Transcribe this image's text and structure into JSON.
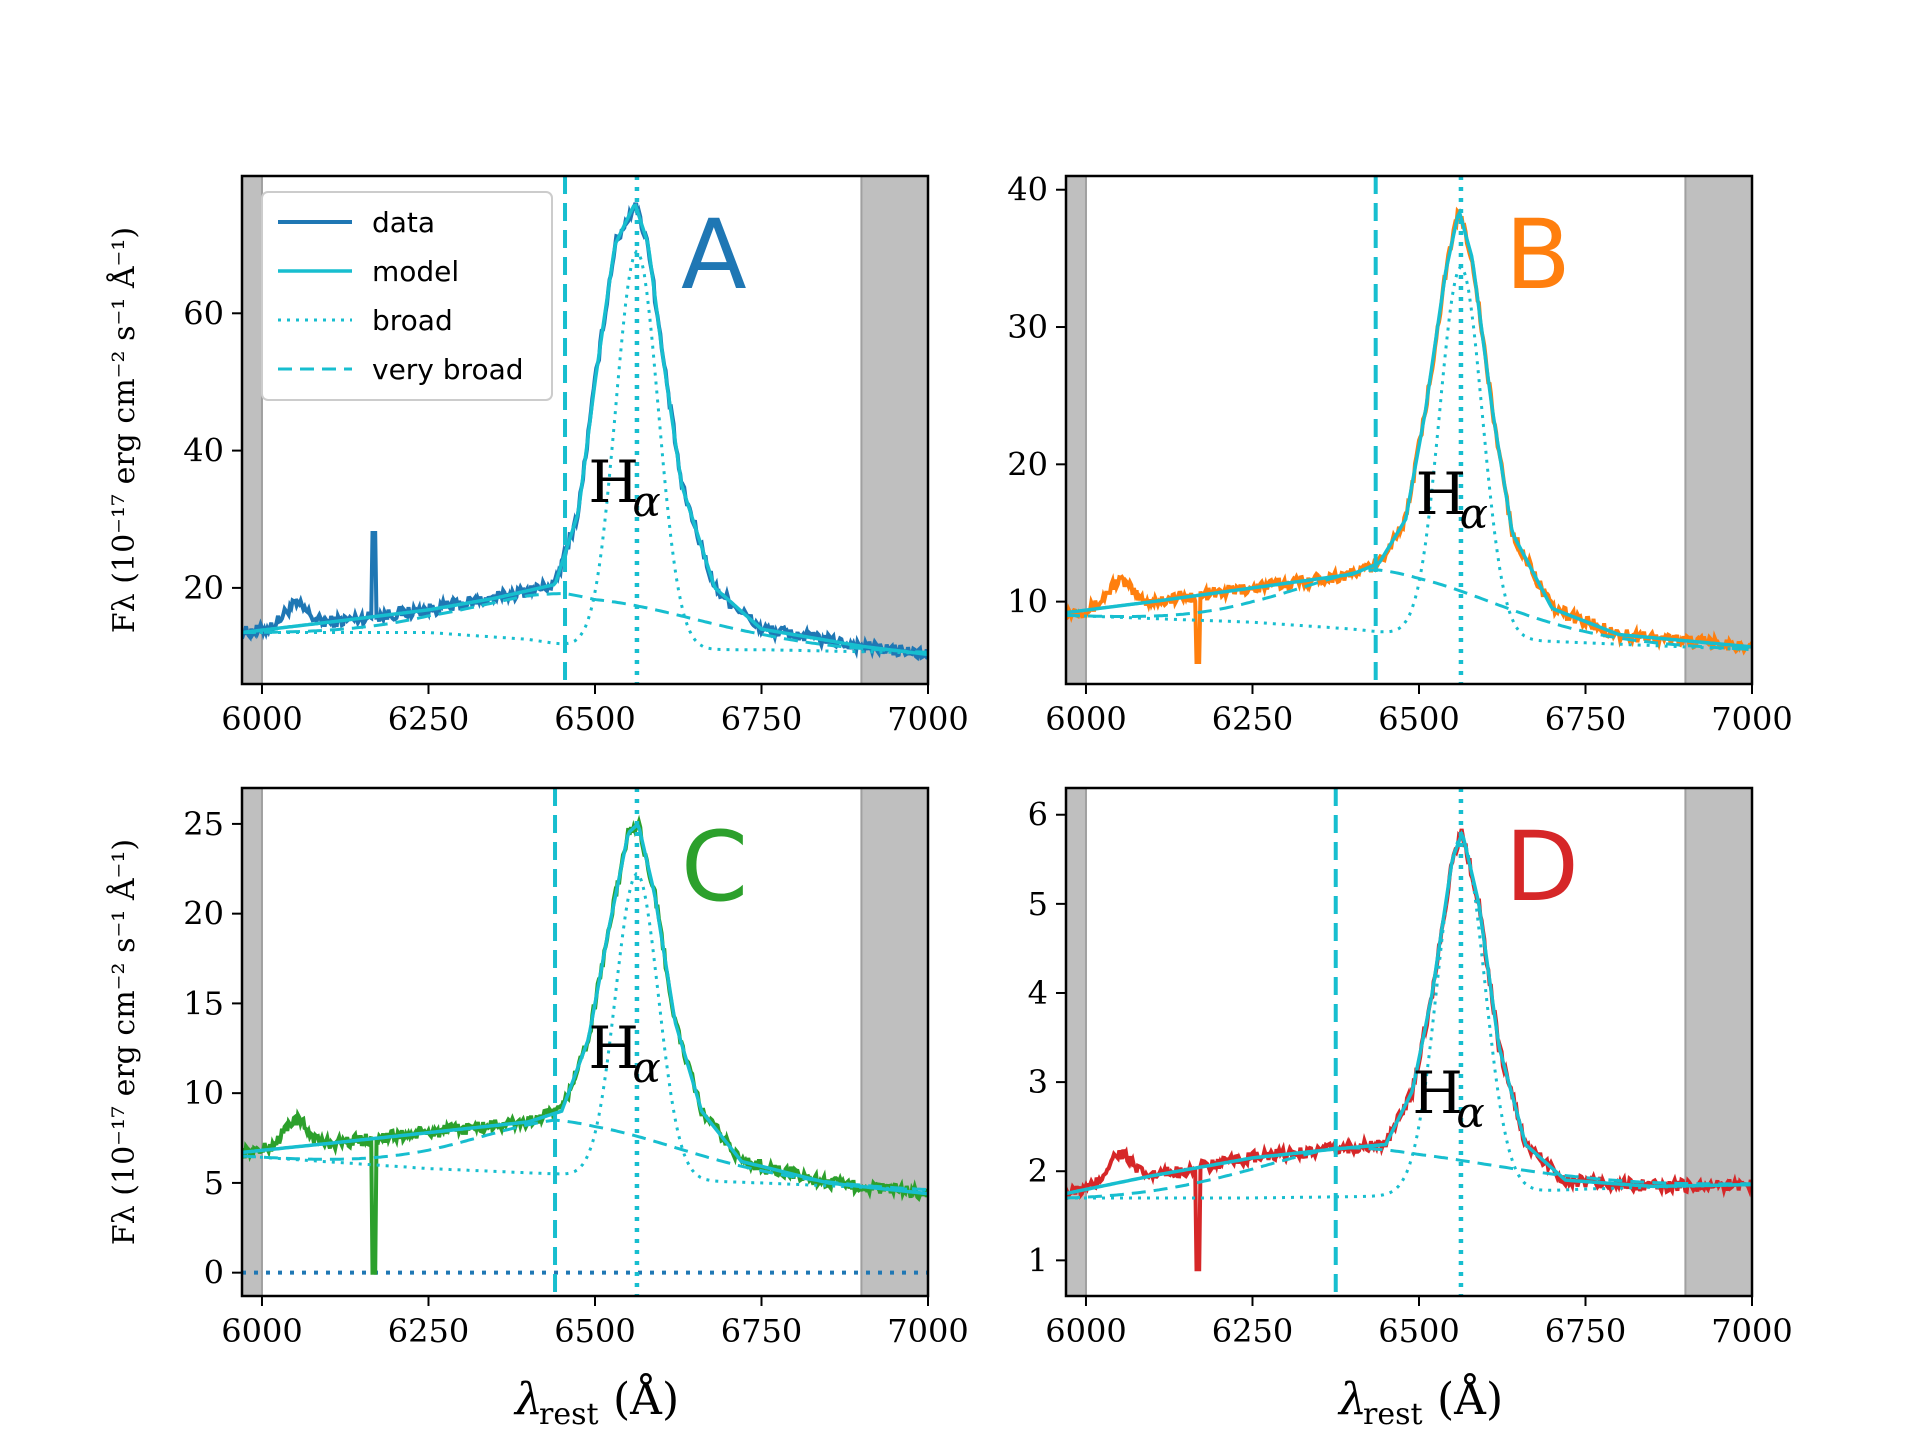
{
  "chart_data": [
    {
      "type": "line",
      "panel": "A",
      "label_color": "#1f77b4",
      "data_color": "#1f77b4",
      "xlim": [
        5970,
        7000
      ],
      "ylim": [
        6,
        80
      ],
      "yticks": [
        20,
        40,
        60
      ],
      "xticks": [
        6000,
        6250,
        6500,
        6750,
        7000
      ],
      "xlabel_main": "λ",
      "xlabel_sub": "rest",
      "xlabel_unit": "(Å)",
      "ylabel": "Fλ (10⁻¹⁷ erg cm⁻² s⁻¹ Å⁻¹)",
      "line_label": "H",
      "line_label_sub": "α",
      "shaded_ranges": [
        [
          5970,
          6000
        ],
        [
          6900,
          7000
        ]
      ],
      "very_broad_center": 6455,
      "broad_center": 6563,
      "very_broad_params": {
        "amp": 7.5,
        "sigma": 190
      },
      "broad_params": {
        "amp": 58,
        "sigma": 32
      },
      "continuum": [
        [
          5970,
          13.5
        ],
        [
          6000,
          13.5
        ],
        [
          6250,
          13.5
        ],
        [
          6400,
          12.5
        ],
        [
          6500,
          11
        ],
        [
          6750,
          11
        ],
        [
          7000,
          10.5
        ]
      ],
      "model": [
        [
          5970,
          13.5
        ],
        [
          6100,
          15
        ],
        [
          6250,
          16.8
        ],
        [
          6350,
          18.5
        ],
        [
          6440,
          20.5
        ],
        [
          6475,
          31
        ],
        [
          6500,
          50
        ],
        [
          6530,
          70
        ],
        [
          6560,
          76
        ],
        [
          6580,
          70
        ],
        [
          6600,
          55
        ],
        [
          6630,
          35
        ],
        [
          6680,
          20
        ],
        [
          6750,
          14
        ],
        [
          6900,
          11.5
        ],
        [
          7000,
          10.3
        ]
      ],
      "data_features": [
        [
          6050,
          17.5
        ],
        [
          6168,
          28
        ]
      ],
      "baseline_zero": false
    },
    {
      "type": "line",
      "panel": "B",
      "label_color": "#ff7f0e",
      "data_color": "#ff7f0e",
      "xlim": [
        5970,
        7000
      ],
      "ylim": [
        4,
        41
      ],
      "yticks": [
        10,
        20,
        30,
        40
      ],
      "xticks": [
        6000,
        6250,
        6500,
        6750,
        7000
      ],
      "xlabel_main": "λ",
      "xlabel_sub": "rest",
      "xlabel_unit": "(Å)",
      "ylabel": "",
      "line_label": "H",
      "line_label_sub": "α",
      "shaded_ranges": [
        [
          5970,
          6000
        ],
        [
          6900,
          7000
        ]
      ],
      "very_broad_center": 6435,
      "broad_center": 6563,
      "very_broad_params": {
        "amp": 4.5,
        "sigma": 170
      },
      "broad_params": {
        "amp": 27,
        "sigma": 32
      },
      "continuum": [
        [
          5970,
          9
        ],
        [
          6250,
          8.5
        ],
        [
          6400,
          8
        ],
        [
          6500,
          7.5
        ],
        [
          6750,
          7
        ],
        [
          7000,
          6.5
        ]
      ],
      "model": [
        [
          5970,
          9.2
        ],
        [
          6100,
          10
        ],
        [
          6250,
          11
        ],
        [
          6400,
          12
        ],
        [
          6440,
          12.8
        ],
        [
          6480,
          16
        ],
        [
          6510,
          24
        ],
        [
          6540,
          34
        ],
        [
          6560,
          38.5
        ],
        [
          6580,
          35
        ],
        [
          6610,
          24
        ],
        [
          6640,
          15
        ],
        [
          6700,
          9.5
        ],
        [
          6800,
          7.6
        ],
        [
          7000,
          6.7
        ]
      ],
      "data_features": [
        [
          6050,
          11.5
        ],
        [
          6168,
          5.6
        ]
      ],
      "baseline_zero": false
    },
    {
      "type": "line",
      "panel": "C",
      "label_color": "#2ca02c",
      "data_color": "#2ca02c",
      "xlim": [
        5970,
        7000
      ],
      "ylim": [
        -1.3,
        27
      ],
      "yticks": [
        0,
        5,
        10,
        15,
        20,
        25
      ],
      "xticks": [
        6000,
        6250,
        6500,
        6750,
        7000
      ],
      "xlabel_main": "λ",
      "xlabel_sub": "rest",
      "xlabel_unit": "(Å)",
      "ylabel": "Fλ (10⁻¹⁷ erg cm⁻² s⁻¹ Å⁻¹)",
      "line_label": "H",
      "line_label_sub": "α",
      "shaded_ranges": [
        [
          5970,
          6000
        ],
        [
          6900,
          7000
        ]
      ],
      "very_broad_center": 6440,
      "broad_center": 6563,
      "very_broad_params": {
        "amp": 3,
        "sigma": 180
      },
      "broad_params": {
        "amp": 17,
        "sigma": 32
      },
      "continuum": [
        [
          5970,
          6.5
        ],
        [
          6250,
          5.8
        ],
        [
          6440,
          5.5
        ],
        [
          6500,
          5.3
        ],
        [
          6750,
          5.0
        ],
        [
          7000,
          4.6
        ]
      ],
      "model": [
        [
          5970,
          6.7
        ],
        [
          6100,
          7.2
        ],
        [
          6250,
          7.8
        ],
        [
          6400,
          8.4
        ],
        [
          6450,
          9
        ],
        [
          6490,
          13
        ],
        [
          6520,
          19
        ],
        [
          6550,
          24.5
        ],
        [
          6565,
          25
        ],
        [
          6590,
          21
        ],
        [
          6620,
          14
        ],
        [
          6660,
          9
        ],
        [
          6720,
          6.2
        ],
        [
          6850,
          5
        ],
        [
          7000,
          4.4
        ]
      ],
      "data_features": [
        [
          6050,
          8.5
        ],
        [
          6168,
          0
        ]
      ],
      "baseline_zero": true
    },
    {
      "type": "line",
      "panel": "D",
      "label_color": "#d62728",
      "data_color": "#d62728",
      "xlim": [
        5970,
        7000
      ],
      "ylim": [
        0.6,
        6.3
      ],
      "yticks": [
        1,
        2,
        3,
        4,
        5,
        6
      ],
      "xticks": [
        6000,
        6250,
        6500,
        6750,
        7000
      ],
      "xlabel_main": "λ",
      "xlabel_sub": "rest",
      "xlabel_unit": "(Å)",
      "ylabel": "",
      "line_label": "H",
      "line_label_sub": "α",
      "shaded_ranges": [
        [
          5970,
          6000
        ],
        [
          6900,
          7000
        ]
      ],
      "very_broad_center": 6375,
      "broad_center": 6563,
      "very_broad_params": {
        "amp": 0.55,
        "sigma": 220
      },
      "broad_params": {
        "amp": 4.0,
        "sigma": 35
      },
      "continuum": [
        [
          5970,
          1.7
        ],
        [
          6250,
          1.7
        ],
        [
          6450,
          1.72
        ],
        [
          6500,
          1.72
        ],
        [
          6750,
          1.8
        ],
        [
          7000,
          1.85
        ]
      ],
      "model": [
        [
          5970,
          1.75
        ],
        [
          6100,
          1.95
        ],
        [
          6250,
          2.15
        ],
        [
          6375,
          2.25
        ],
        [
          6450,
          2.3
        ],
        [
          6490,
          2.9
        ],
        [
          6520,
          4
        ],
        [
          6550,
          5.5
        ],
        [
          6565,
          5.8
        ],
        [
          6590,
          5.0
        ],
        [
          6620,
          3.4
        ],
        [
          6660,
          2.3
        ],
        [
          6720,
          1.9
        ],
        [
          6850,
          1.83
        ],
        [
          7000,
          1.85
        ]
      ],
      "data_features": [
        [
          6050,
          2.2
        ],
        [
          6168,
          0.9
        ]
      ],
      "baseline_zero": false
    }
  ],
  "legend": {
    "items": [
      "data",
      "model",
      "broad",
      "very broad"
    ],
    "model_color": "#17becf",
    "data_color": "#1f77b4"
  },
  "colors": {
    "model": "#17becf",
    "shade": "#bfbfbf",
    "baseline": "#1f77b4"
  }
}
